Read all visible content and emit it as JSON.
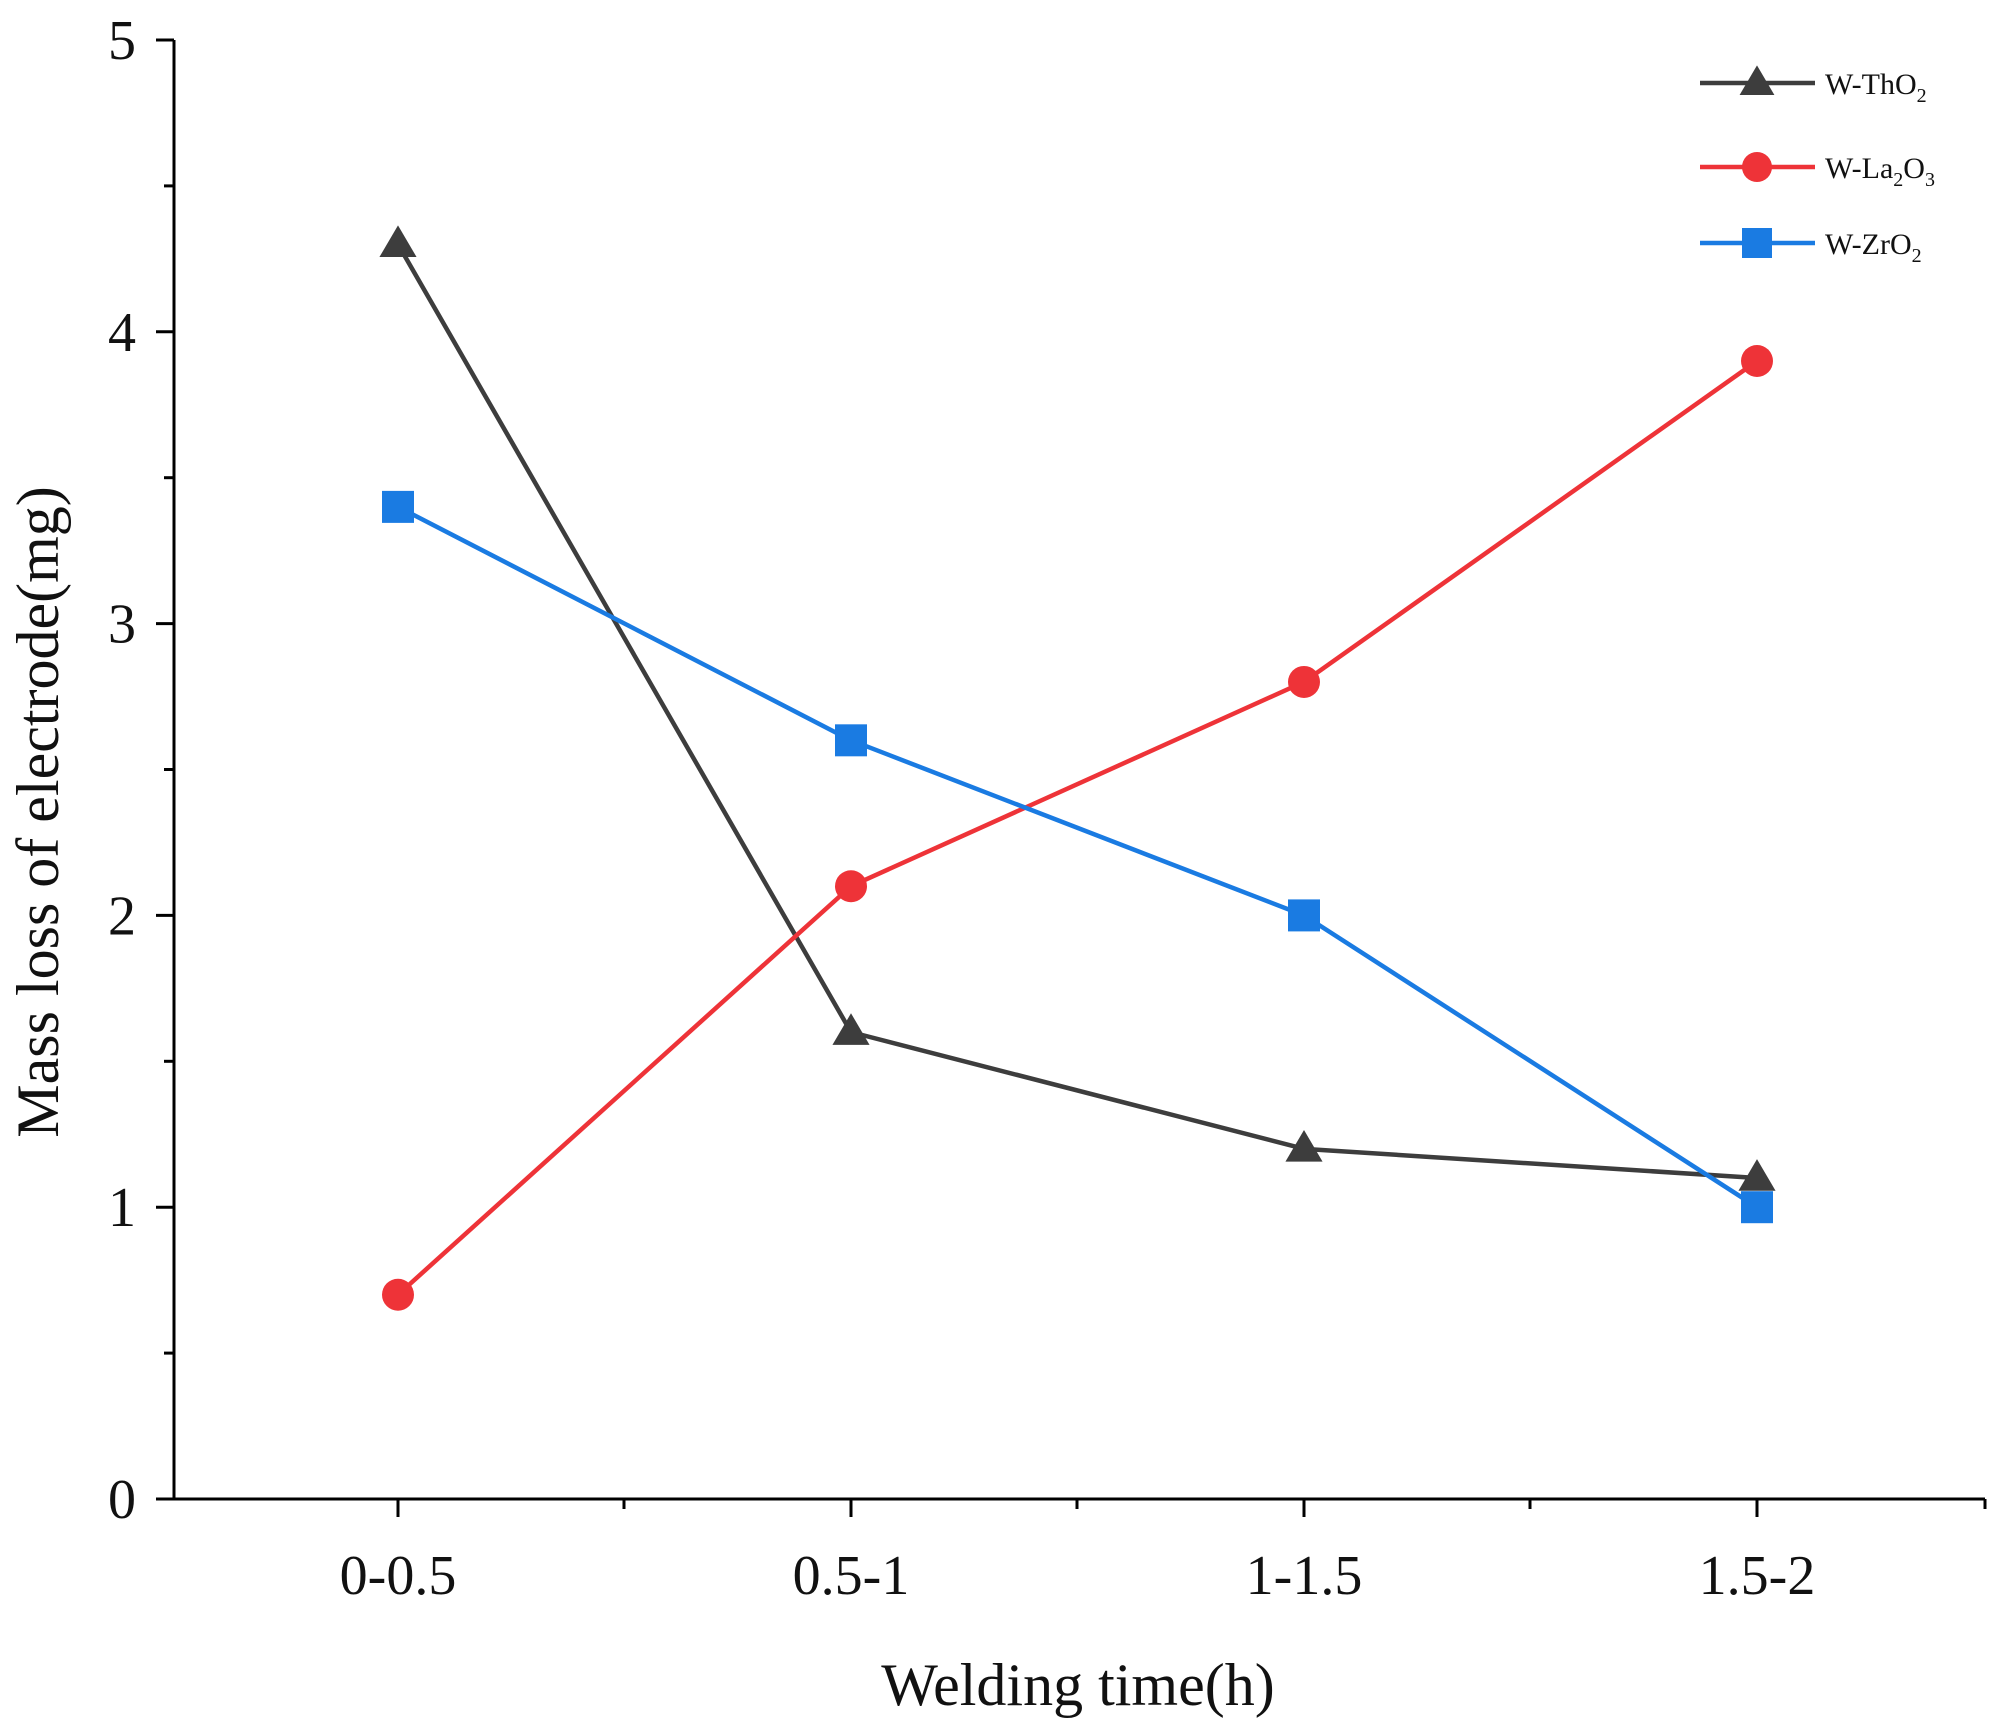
{
  "chart_data": {
    "type": "line",
    "title": "",
    "xlabel": "Welding time(h)",
    "ylabel": "Mass loss of electrode(mg)",
    "categories": [
      "0-0.5",
      "0.5-1",
      "1-1.5",
      "1.5-2"
    ],
    "ylim": [
      0,
      5
    ],
    "yticks": [
      "0",
      "1",
      "2",
      "3",
      "4",
      "5"
    ],
    "grid": false,
    "legend_position": "top-right",
    "series": [
      {
        "name": "W-ThO2",
        "label_parts": [
          "W-ThO",
          "2",
          ""
        ],
        "marker": "triangle",
        "color": "#3d3d3d",
        "values": [
          4.3,
          1.6,
          1.2,
          1.1
        ]
      },
      {
        "name": "W-La2O3",
        "label_parts": [
          "W-La",
          "2",
          "O",
          "3"
        ],
        "marker": "circle",
        "color": "#ee3338",
        "values": [
          0.7,
          2.1,
          2.8,
          3.9
        ]
      },
      {
        "name": "W-ZrO2",
        "label_parts": [
          "W-ZrO",
          "2",
          ""
        ],
        "marker": "square",
        "color": "#1a7be2",
        "values": [
          3.4,
          2.6,
          2.0,
          1.0
        ]
      }
    ]
  }
}
